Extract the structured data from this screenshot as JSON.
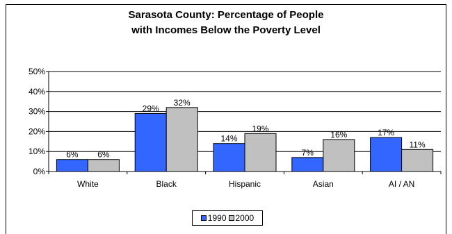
{
  "chart_data": {
    "type": "bar",
    "title_lines": [
      "Sarasota County: Percentage of People",
      "with Incomes Below the Poverty Level"
    ],
    "xlabel": "",
    "ylabel": "",
    "categories": [
      "White",
      "Black",
      "Hispanic",
      "Asian",
      "AI / AN"
    ],
    "series": [
      {
        "name": "1990",
        "values": [
          6,
          29,
          14,
          7,
          17
        ],
        "labels": [
          "6%",
          "29%",
          "14%",
          "7%",
          "17%"
        ],
        "color": "#3366FF"
      },
      {
        "name": "2000",
        "values": [
          6,
          32,
          19,
          16,
          11
        ],
        "labels": [
          "6%",
          "32%",
          "19%",
          "16%",
          "11%"
        ],
        "color": "#C0C0C0"
      }
    ],
    "ylim": [
      0,
      50
    ],
    "yticks": [
      0,
      10,
      20,
      30,
      40,
      50
    ],
    "ytick_labels": [
      "0%",
      "10%",
      "20%",
      "30%",
      "40%",
      "50%"
    ],
    "grid": true,
    "legend_position": "bottom"
  }
}
